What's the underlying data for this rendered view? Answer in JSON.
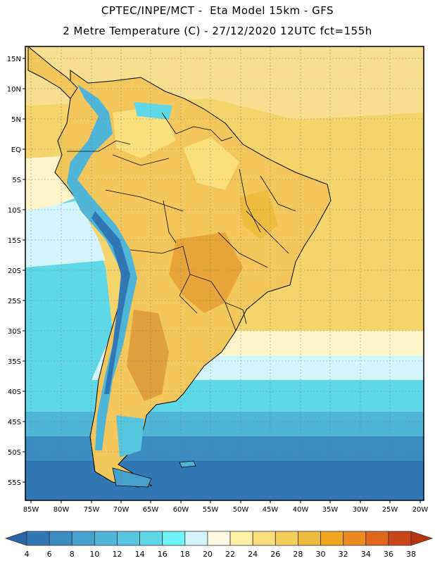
{
  "header": {
    "line1": "CPTEC/INPE/MCT -  Eta Model 15km - GFS",
    "line2": "2 Metre Temperature (C) - 27/12/2020 12UTC fct=155h"
  },
  "axes": {
    "lat_ticks": [
      "15N",
      "10N",
      "5N",
      "EQ",
      "5S",
      "10S",
      "15S",
      "20S",
      "25S",
      "30S",
      "35S",
      "40S",
      "45S",
      "50S",
      "55S"
    ],
    "lon_ticks": [
      "85W",
      "80W",
      "75W",
      "70W",
      "65W",
      "60W",
      "55W",
      "50W",
      "45W",
      "40W",
      "35W",
      "30W",
      "25W",
      "20W"
    ]
  },
  "colorbar": {
    "labels": [
      "4",
      "6",
      "8",
      "10",
      "12",
      "14",
      "16",
      "18",
      "20",
      "22",
      "24",
      "26",
      "28",
      "30",
      "32",
      "34",
      "36",
      "38"
    ],
    "colors": [
      "#2a65a8",
      "#2f78b5",
      "#3a8cc3",
      "#45a2cf",
      "#4fb6da",
      "#57c7e0",
      "#5ed8e8",
      "#6ef3f7",
      "#d4f4fb",
      "#fdf8e3",
      "#fdf2a4",
      "#f9e07c",
      "#f3cf5a",
      "#eebb3e",
      "#f2a51e",
      "#ec8a22",
      "#e0661c",
      "#c9461a",
      "#b8360f"
    ]
  },
  "palette": {
    "ocean_warm": "#f3d56b",
    "ocean_pale": "#fdf3c8",
    "ocean_cyan": "#57c7e0",
    "ocean_blue": "#3a8cc3",
    "ocean_deep": "#2f78b5",
    "land": "#f2c65a",
    "hot": "#e9a53a",
    "andes": "#4fb6da"
  }
}
